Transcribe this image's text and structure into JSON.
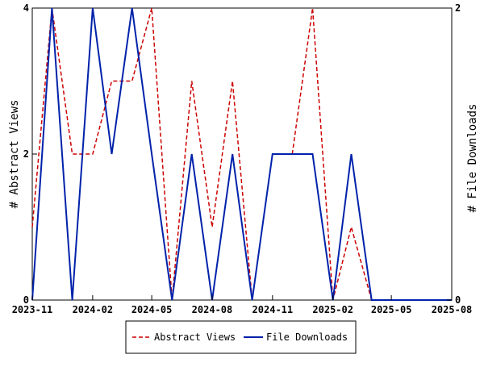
{
  "chart_data": {
    "type": "line",
    "x": [
      "2023-11-01",
      "2023-12-01",
      "2024-01-01",
      "2024-02-01",
      "2024-03-01",
      "2024-04-01",
      "2024-05-01",
      "2024-06-01",
      "2024-07-01",
      "2024-08-01",
      "2024-09-01",
      "2024-10-01",
      "2024-11-01",
      "2024-12-01",
      "2025-01-01",
      "2025-02-01",
      "2025-03-01",
      "2025-04-01",
      "2025-05-01",
      "2025-06-01",
      "2025-07-01",
      "2025-08-01"
    ],
    "series": [
      {
        "name": "Abstract Views",
        "axis": "left",
        "color": "#cc0000",
        "dash": "dashed",
        "values": [
          1,
          4,
          2,
          2,
          3,
          3,
          4,
          0,
          3,
          1,
          3,
          0,
          null,
          2,
          4,
          0,
          1,
          0,
          0,
          0,
          0,
          0
        ]
      },
      {
        "name": "File Downloads",
        "axis": "right",
        "color": "#0022aa",
        "dash": "solid",
        "values": [
          0,
          2,
          0,
          2,
          1,
          2,
          1,
          0,
          1,
          0,
          1,
          0,
          1,
          1,
          1,
          0,
          1,
          0,
          0,
          0,
          0,
          0
        ]
      }
    ],
    "xticks": [
      "2023-11",
      "2024-02",
      "2024-05",
      "2024-08",
      "2024-11",
      "2025-02",
      "2025-05",
      "2025-08"
    ],
    "xtick_dates": [
      "2023-11-01",
      "2024-02-01",
      "2024-05-01",
      "2024-08-01",
      "2024-11-01",
      "2025-02-01",
      "2025-05-01",
      "2025-08-01"
    ],
    "ylabel": "# Abstract Views",
    "y2label": "# File Downloads",
    "ylim": [
      0,
      4
    ],
    "y2lim": [
      0,
      2
    ],
    "yticks": [
      "0",
      "2",
      "4"
    ],
    "y2ticks": [
      "0",
      "2"
    ],
    "grid": false,
    "legend": "bottom"
  }
}
